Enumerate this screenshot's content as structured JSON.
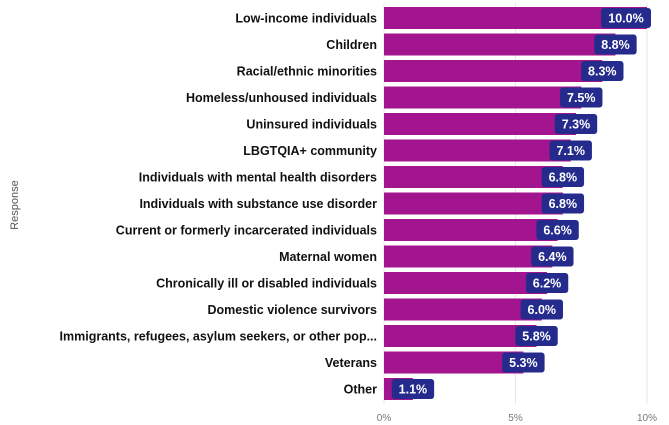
{
  "chart_data": {
    "type": "bar",
    "orientation": "horizontal",
    "title": "",
    "xlabel": "",
    "ylabel": "Response",
    "categories": [
      "Low-income individuals",
      "Children",
      "Racial/ethnic minorities",
      "Homeless/unhoused individuals",
      "Uninsured individuals",
      "LBGTQIA+ community",
      "Individuals with mental health disorders",
      "Individuals with substance use disorder",
      "Current or formerly incarcerated individuals",
      "Maternal women",
      "Chronically ill or disabled individuals",
      "Domestic violence survivors",
      "Immigrants, refugees, asylum seekers, or other pop...",
      "Veterans",
      "Other"
    ],
    "values": [
      10.0,
      8.8,
      8.3,
      7.5,
      7.3,
      7.1,
      6.8,
      6.8,
      6.6,
      6.4,
      6.2,
      6.0,
      5.8,
      5.3,
      1.1
    ],
    "value_labels": [
      "10.0%",
      "8.8%",
      "8.3%",
      "7.5%",
      "7.3%",
      "7.1%",
      "6.8%",
      "6.8%",
      "6.6%",
      "6.4%",
      "6.2%",
      "6.0%",
      "5.8%",
      "5.3%",
      "1.1%"
    ],
    "xlim": [
      0,
      10
    ],
    "xticks": [
      0,
      5,
      10
    ],
    "xtick_labels": [
      "0%",
      "5%",
      "10%"
    ],
    "grid": true,
    "legend": "none",
    "colors": {
      "bar": "#a3158f",
      "label_bg": "#252b8c",
      "label_text": "#ffffff",
      "category_text": "#111111",
      "tick_text": "#777777",
      "grid": "#e6e6e6"
    }
  }
}
